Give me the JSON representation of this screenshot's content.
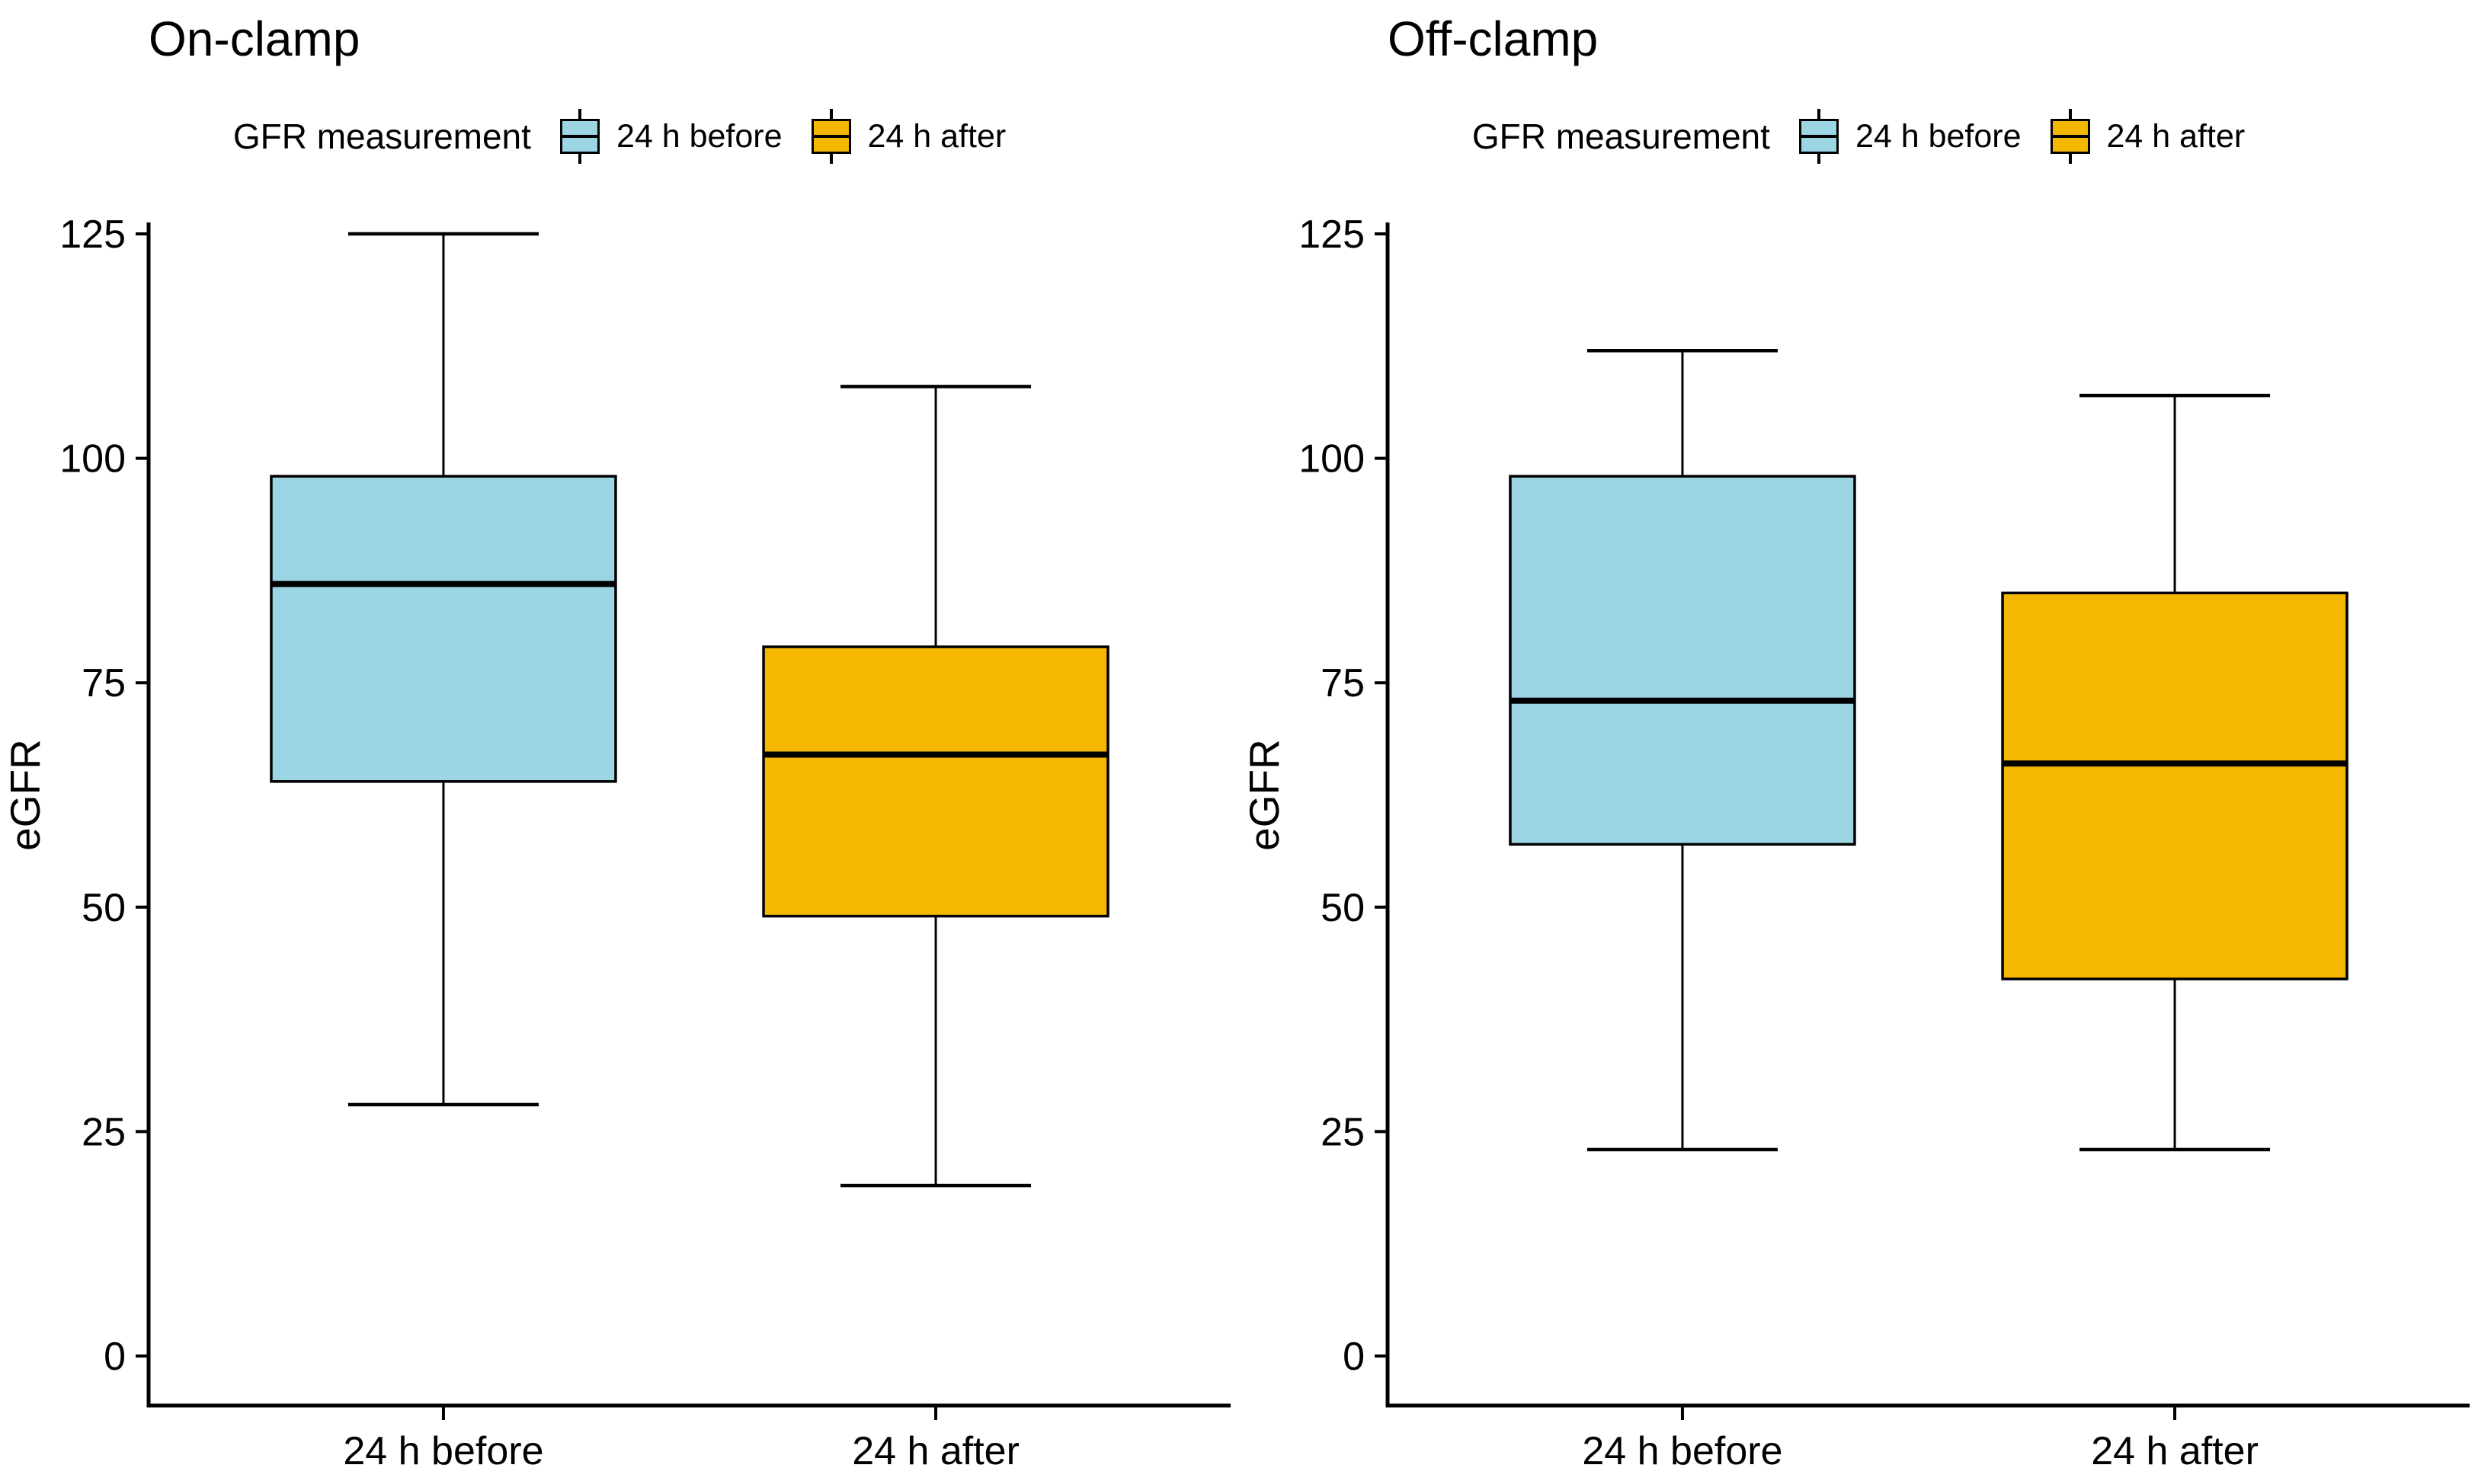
{
  "figure": {
    "background": "#ffffff",
    "box_border_color": "#000000"
  },
  "chart_data": [
    {
      "type": "boxplot",
      "title": "On-clamp",
      "ylabel": "eGFR",
      "ylim": [
        0,
        125
      ],
      "yticks": [
        125,
        100,
        75,
        50,
        25,
        0
      ],
      "categories": [
        "24 h before",
        "24 h after"
      ],
      "grid": false,
      "legend_position": "top",
      "legend": {
        "title": "GFR measurement",
        "entries": [
          {
            "label": "24 h before",
            "color": "#9CD5E4"
          },
          {
            "label": "24 h after",
            "color": "#F5B800"
          }
        ]
      },
      "series": [
        {
          "name": "24 h before",
          "color": "#9CD5E4",
          "min": 28,
          "q1": 64,
          "median": 86,
          "q3": 98,
          "max": 125
        },
        {
          "name": "24 h after",
          "color": "#F5B800",
          "min": 19,
          "q1": 49,
          "median": 67,
          "q3": 79,
          "max": 108
        }
      ]
    },
    {
      "type": "boxplot",
      "title": "Off-clamp",
      "ylabel": "eGFR",
      "ylim": [
        0,
        125
      ],
      "yticks": [
        125,
        100,
        75,
        50,
        25,
        0
      ],
      "categories": [
        "24 h before",
        "24 h after"
      ],
      "grid": false,
      "legend_position": "top",
      "legend": {
        "title": "GFR measurement",
        "entries": [
          {
            "label": "24 h before",
            "color": "#9CD5E4"
          },
          {
            "label": "24 h after",
            "color": "#F5B800"
          }
        ]
      },
      "series": [
        {
          "name": "24 h before",
          "color": "#9CD5E4",
          "min": 23,
          "q1": 57,
          "median": 73,
          "q3": 98,
          "max": 112
        },
        {
          "name": "24 h after",
          "color": "#F5B800",
          "min": 23,
          "q1": 42,
          "median": 66,
          "q3": 85,
          "max": 107
        }
      ]
    }
  ]
}
